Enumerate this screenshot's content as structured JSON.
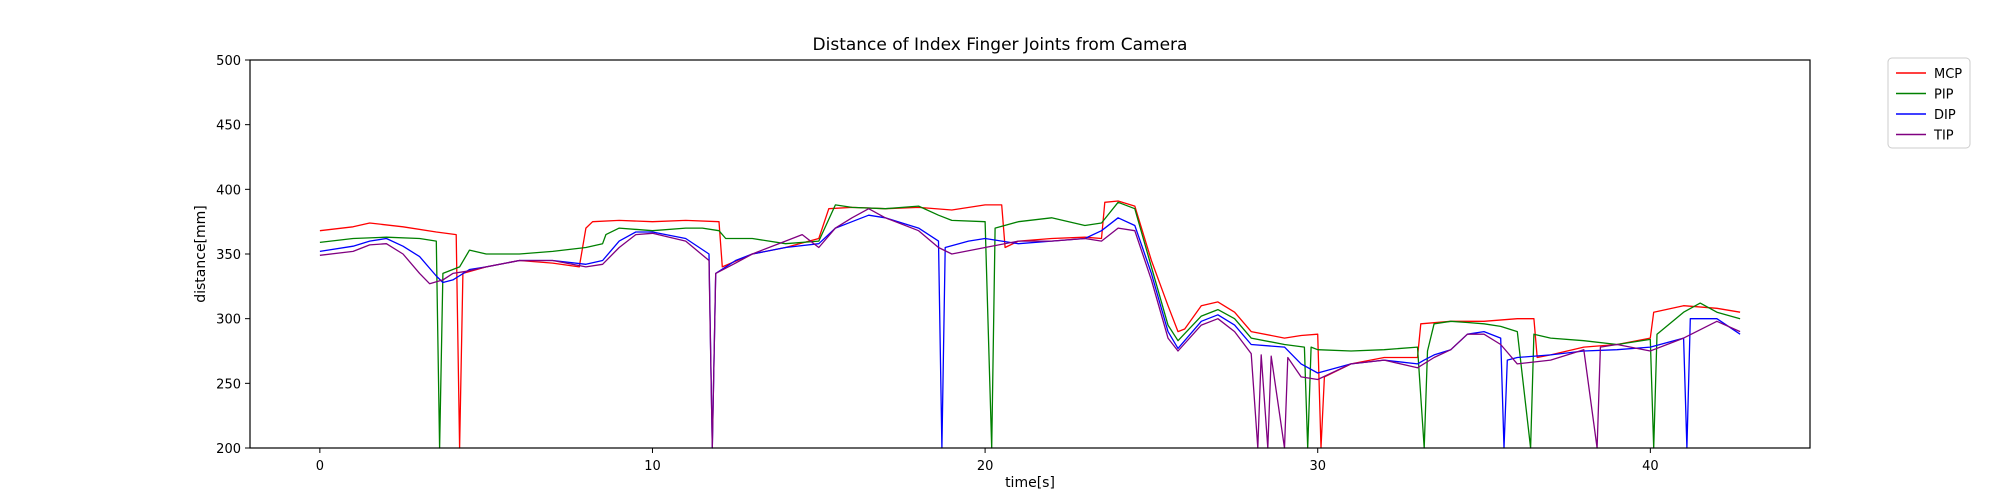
{
  "chart_data": {
    "type": "line",
    "title": "Distance of Index Finger Joints from Camera",
    "xlabel": "time[s]",
    "ylabel": "distance[mm]",
    "xlim": [
      -2.1,
      44.8
    ],
    "ylim": [
      200,
      500
    ],
    "xticks": [
      0,
      10,
      20,
      30,
      40
    ],
    "yticks": [
      200,
      250,
      300,
      350,
      400,
      450,
      500
    ],
    "grid": false,
    "legend_position": "outside-top-right",
    "series": [
      {
        "name": "MCP",
        "color": "#ff0000",
        "points": [
          [
            0,
            368
          ],
          [
            1,
            371
          ],
          [
            1.5,
            374
          ],
          [
            2.5,
            371
          ],
          [
            3.5,
            367
          ],
          [
            4.1,
            365
          ],
          [
            4.2,
            200
          ],
          [
            4.3,
            335
          ],
          [
            5,
            340
          ],
          [
            6,
            345
          ],
          [
            7,
            343
          ],
          [
            7.8,
            340
          ],
          [
            8,
            370
          ],
          [
            8.2,
            375
          ],
          [
            9,
            376
          ],
          [
            10,
            375
          ],
          [
            11,
            376
          ],
          [
            12,
            375
          ],
          [
            12.1,
            340
          ],
          [
            13,
            350
          ],
          [
            14,
            355
          ],
          [
            15,
            362
          ],
          [
            15.3,
            385
          ],
          [
            16,
            386
          ],
          [
            17,
            385
          ],
          [
            18,
            386
          ],
          [
            19,
            384
          ],
          [
            20,
            388
          ],
          [
            20.5,
            388
          ],
          [
            20.6,
            355
          ],
          [
            21,
            360
          ],
          [
            22,
            362
          ],
          [
            23,
            363
          ],
          [
            23.5,
            362
          ],
          [
            23.6,
            390
          ],
          [
            24,
            391
          ],
          [
            24.5,
            387
          ],
          [
            25,
            345
          ],
          [
            25.5,
            310
          ],
          [
            25.8,
            290
          ],
          [
            26,
            292
          ],
          [
            26.5,
            310
          ],
          [
            27,
            313
          ],
          [
            27.5,
            305
          ],
          [
            28,
            290
          ],
          [
            29,
            285
          ],
          [
            29.5,
            287
          ],
          [
            30,
            288
          ],
          [
            30.1,
            200
          ],
          [
            30.2,
            255
          ],
          [
            31,
            265
          ],
          [
            32,
            270
          ],
          [
            33,
            270
          ],
          [
            33.1,
            296
          ],
          [
            34,
            298
          ],
          [
            35,
            298
          ],
          [
            36,
            300
          ],
          [
            36.5,
            300
          ],
          [
            36.6,
            270
          ],
          [
            37,
            272
          ],
          [
            38,
            278
          ],
          [
            39,
            280
          ],
          [
            40,
            285
          ],
          [
            40.1,
            305
          ],
          [
            41,
            310
          ],
          [
            42,
            308
          ],
          [
            42.7,
            305
          ]
        ]
      },
      {
        "name": "PIP",
        "color": "#008000",
        "points": [
          [
            0,
            359
          ],
          [
            1,
            362
          ],
          [
            2,
            363
          ],
          [
            3,
            362
          ],
          [
            3.5,
            360
          ],
          [
            3.6,
            200
          ],
          [
            3.7,
            335
          ],
          [
            4.2,
            340
          ],
          [
            4.5,
            353
          ],
          [
            5,
            350
          ],
          [
            6,
            350
          ],
          [
            7,
            352
          ],
          [
            8,
            355
          ],
          [
            8.5,
            358
          ],
          [
            8.6,
            365
          ],
          [
            9,
            370
          ],
          [
            10,
            368
          ],
          [
            11,
            370
          ],
          [
            11.5,
            370
          ],
          [
            12,
            368
          ],
          [
            12.2,
            362
          ],
          [
            13,
            362
          ],
          [
            14,
            358
          ],
          [
            15,
            360
          ],
          [
            15.5,
            388
          ],
          [
            16,
            386
          ],
          [
            17,
            385
          ],
          [
            18,
            387
          ],
          [
            18.6,
            380
          ],
          [
            19,
            376
          ],
          [
            20,
            375
          ],
          [
            20.2,
            200
          ],
          [
            20.3,
            370
          ],
          [
            21,
            375
          ],
          [
            22,
            378
          ],
          [
            23,
            372
          ],
          [
            23.5,
            374
          ],
          [
            24,
            390
          ],
          [
            24.5,
            385
          ],
          [
            25,
            340
          ],
          [
            25.5,
            295
          ],
          [
            25.8,
            283
          ],
          [
            26.5,
            302
          ],
          [
            27,
            307
          ],
          [
            27.5,
            300
          ],
          [
            28,
            285
          ],
          [
            29,
            280
          ],
          [
            29.6,
            278
          ],
          [
            29.7,
            200
          ],
          [
            29.8,
            278
          ],
          [
            30,
            276
          ],
          [
            31,
            275
          ],
          [
            32,
            276
          ],
          [
            33,
            278
          ],
          [
            33.2,
            200
          ],
          [
            33.3,
            275
          ],
          [
            33.5,
            296
          ],
          [
            34,
            298
          ],
          [
            34.5,
            297
          ],
          [
            35,
            296
          ],
          [
            35.5,
            294
          ],
          [
            36,
            290
          ],
          [
            36.4,
            200
          ],
          [
            36.5,
            288
          ],
          [
            37,
            285
          ],
          [
            38,
            283
          ],
          [
            39,
            280
          ],
          [
            40,
            284
          ],
          [
            40.1,
            200
          ],
          [
            40.2,
            288
          ],
          [
            41,
            305
          ],
          [
            41.5,
            312
          ],
          [
            42,
            305
          ],
          [
            42.7,
            300
          ]
        ]
      },
      {
        "name": "DIP",
        "color": "#0000ff",
        "points": [
          [
            0,
            352
          ],
          [
            1,
            356
          ],
          [
            1.5,
            360
          ],
          [
            2,
            362
          ],
          [
            2.5,
            356
          ],
          [
            3,
            348
          ],
          [
            3.5,
            333
          ],
          [
            3.7,
            328
          ],
          [
            4,
            330
          ],
          [
            4.5,
            338
          ],
          [
            5,
            340
          ],
          [
            6,
            345
          ],
          [
            7,
            345
          ],
          [
            8,
            342
          ],
          [
            8.5,
            345
          ],
          [
            9,
            360
          ],
          [
            9.5,
            367
          ],
          [
            10,
            367
          ],
          [
            11,
            362
          ],
          [
            11.7,
            350
          ],
          [
            11.8,
            200
          ],
          [
            11.9,
            335
          ],
          [
            12.5,
            345
          ],
          [
            13,
            350
          ],
          [
            14,
            355
          ],
          [
            15,
            358
          ],
          [
            15.5,
            370
          ],
          [
            16,
            375
          ],
          [
            16.5,
            380
          ],
          [
            17,
            378
          ],
          [
            18,
            370
          ],
          [
            18.6,
            360
          ],
          [
            18.7,
            200
          ],
          [
            18.8,
            355
          ],
          [
            19.5,
            360
          ],
          [
            20,
            362
          ],
          [
            21,
            358
          ],
          [
            22,
            360
          ],
          [
            23,
            362
          ],
          [
            23.5,
            368
          ],
          [
            24,
            378
          ],
          [
            24.5,
            372
          ],
          [
            25,
            335
          ],
          [
            25.5,
            290
          ],
          [
            25.8,
            277
          ],
          [
            26.5,
            298
          ],
          [
            27,
            303
          ],
          [
            27.5,
            295
          ],
          [
            28,
            280
          ],
          [
            29,
            278
          ],
          [
            29.5,
            265
          ],
          [
            30,
            258
          ],
          [
            31,
            265
          ],
          [
            32,
            268
          ],
          [
            33,
            265
          ],
          [
            33.2,
            268
          ],
          [
            33.5,
            272
          ],
          [
            34,
            276
          ],
          [
            34.5,
            288
          ],
          [
            35,
            290
          ],
          [
            35.5,
            285
          ],
          [
            35.6,
            200
          ],
          [
            35.7,
            268
          ],
          [
            36,
            270
          ],
          [
            37,
            272
          ],
          [
            38,
            275
          ],
          [
            39,
            276
          ],
          [
            40,
            278
          ],
          [
            41,
            285
          ],
          [
            41.1,
            200
          ],
          [
            41.2,
            300
          ],
          [
            42,
            300
          ],
          [
            42.7,
            288
          ]
        ]
      },
      {
        "name": "TIP",
        "color": "#800080",
        "points": [
          [
            0,
            349
          ],
          [
            1,
            352
          ],
          [
            1.5,
            357
          ],
          [
            2,
            358
          ],
          [
            2.5,
            350
          ],
          [
            3,
            335
          ],
          [
            3.3,
            327
          ],
          [
            3.7,
            330
          ],
          [
            4,
            335
          ],
          [
            4.5,
            337
          ],
          [
            5,
            340
          ],
          [
            6,
            345
          ],
          [
            7,
            345
          ],
          [
            8,
            340
          ],
          [
            8.5,
            342
          ],
          [
            9,
            355
          ],
          [
            9.5,
            365
          ],
          [
            10,
            366
          ],
          [
            11,
            360
          ],
          [
            11.7,
            345
          ],
          [
            11.8,
            200
          ],
          [
            11.9,
            335
          ],
          [
            12.5,
            343
          ],
          [
            13,
            350
          ],
          [
            14,
            360
          ],
          [
            14.5,
            365
          ],
          [
            15,
            355
          ],
          [
            15.5,
            370
          ],
          [
            16,
            378
          ],
          [
            16.5,
            385
          ],
          [
            17,
            378
          ],
          [
            18,
            368
          ],
          [
            18.6,
            355
          ],
          [
            19,
            350
          ],
          [
            20,
            355
          ],
          [
            21,
            360
          ],
          [
            22,
            360
          ],
          [
            23,
            362
          ],
          [
            23.5,
            360
          ],
          [
            24,
            370
          ],
          [
            24.5,
            368
          ],
          [
            25,
            330
          ],
          [
            25.5,
            285
          ],
          [
            25.8,
            275
          ],
          [
            26.5,
            295
          ],
          [
            27,
            300
          ],
          [
            27.5,
            290
          ],
          [
            28,
            273
          ],
          [
            28.2,
            200
          ],
          [
            28.3,
            272
          ],
          [
            28.5,
            200
          ],
          [
            28.6,
            271
          ],
          [
            29,
            200
          ],
          [
            29.1,
            270
          ],
          [
            29.5,
            255
          ],
          [
            30,
            253
          ],
          [
            31,
            265
          ],
          [
            32,
            268
          ],
          [
            33,
            262
          ],
          [
            33.5,
            270
          ],
          [
            34,
            276
          ],
          [
            34.5,
            288
          ],
          [
            35,
            288
          ],
          [
            35.5,
            280
          ],
          [
            36,
            265
          ],
          [
            37,
            268
          ],
          [
            38,
            276
          ],
          [
            38.4,
            200
          ],
          [
            38.5,
            278
          ],
          [
            39,
            280
          ],
          [
            40,
            275
          ],
          [
            41,
            285
          ],
          [
            42,
            298
          ],
          [
            42.7,
            290
          ]
        ]
      }
    ]
  }
}
